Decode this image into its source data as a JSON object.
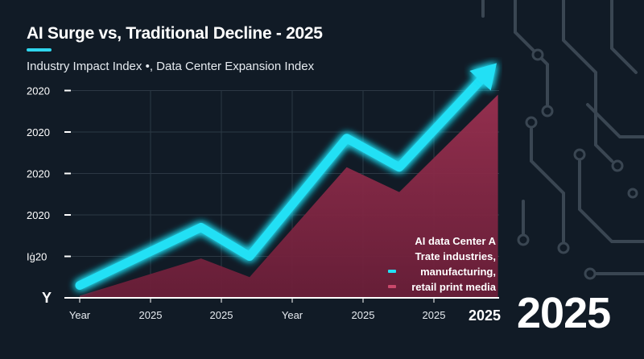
{
  "title": "AI Surge vs, Traditional Decline - 2025",
  "subtitle": "Industry Impact Index •, Data Center Expansion Index",
  "big_year": "2025",
  "colors": {
    "background": "#111b26",
    "ai_line": "#22e0f5",
    "traditional_area": "#8a2a48",
    "accent": "#2fd6ee"
  },
  "legend": {
    "lines": [
      "AI data Center A",
      "Trate  industries,",
      "manufacturing,",
      "retail print media"
    ],
    "swatches": [
      {
        "color": "#22e0f5"
      },
      {
        "color": "#c9486b"
      }
    ],
    "placement": "bottom-right"
  },
  "chart_data": {
    "type": "line",
    "title": "AI Surge vs, Traditional Decline - 2025",
    "subtitle": "Industry Impact Index •, Data Center Expansion Index",
    "ylabel": "Y",
    "y_tick_labels": [
      "Iġ20",
      "2020",
      "2020",
      "2020",
      "2020"
    ],
    "x_tick_labels": [
      "Year",
      "2025",
      "2025",
      "Year",
      "2025",
      "2025"
    ],
    "x_end_label": "2025",
    "ylim": [
      0,
      5.8
    ],
    "grid": true,
    "series": [
      {
        "style": "glowing line with arrow",
        "color": "#22e0f5",
        "x": [
          0,
          1.5,
          2.1,
          3.3,
          3.95,
          5.1
        ],
        "y": [
          0.3,
          1.7,
          1.0,
          3.85,
          3.15,
          5.55
        ]
      },
      {
        "style": "area",
        "color": "#8a2a48",
        "x": [
          0,
          1.5,
          2.1,
          3.3,
          3.95,
          5.17
        ],
        "y": [
          0.05,
          0.95,
          0.5,
          3.15,
          2.55,
          4.9
        ]
      }
    ]
  }
}
